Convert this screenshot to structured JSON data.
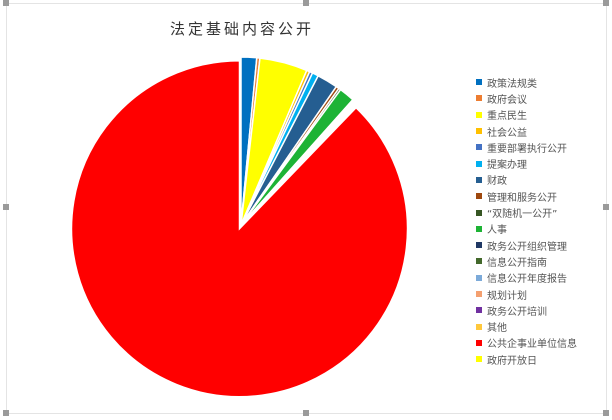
{
  "chart_data": {
    "type": "pie",
    "title": "法定基础内容公开",
    "legend_position": "right",
    "unit": "percent (estimated)",
    "categories": [
      "政策法规类",
      "政府会议",
      "重点民生",
      "社会公益",
      "重要部署执行公开",
      "提案办理",
      "财政",
      "管理和服务公开",
      "“双随机一公开”",
      "人事",
      "政务公开组织管理",
      "信息公开指南",
      "信息公开年度报告",
      "规划计划",
      "政务公开培训",
      "其他",
      "公共企事业单位信息",
      "政府开放日"
    ],
    "values": [
      1.5,
      0.3,
      4.6,
      0.3,
      0.3,
      0.6,
      2.0,
      0.3,
      0.2,
      1.5,
      0.1,
      0.1,
      0.1,
      0.1,
      0.1,
      0.1,
      87.8,
      0
    ],
    "colors": [
      "#0070c0",
      "#ed7d31",
      "#ffff00",
      "#ffc000",
      "#4472c4",
      "#00b0f0",
      "#255e91",
      "#9e480e",
      "#375623",
      "#1db335",
      "#203864",
      "#43682b",
      "#7caad9",
      "#f4a070",
      "#7030a0",
      "#ffc83c",
      "#ff0000",
      "#ffff00"
    ]
  }
}
